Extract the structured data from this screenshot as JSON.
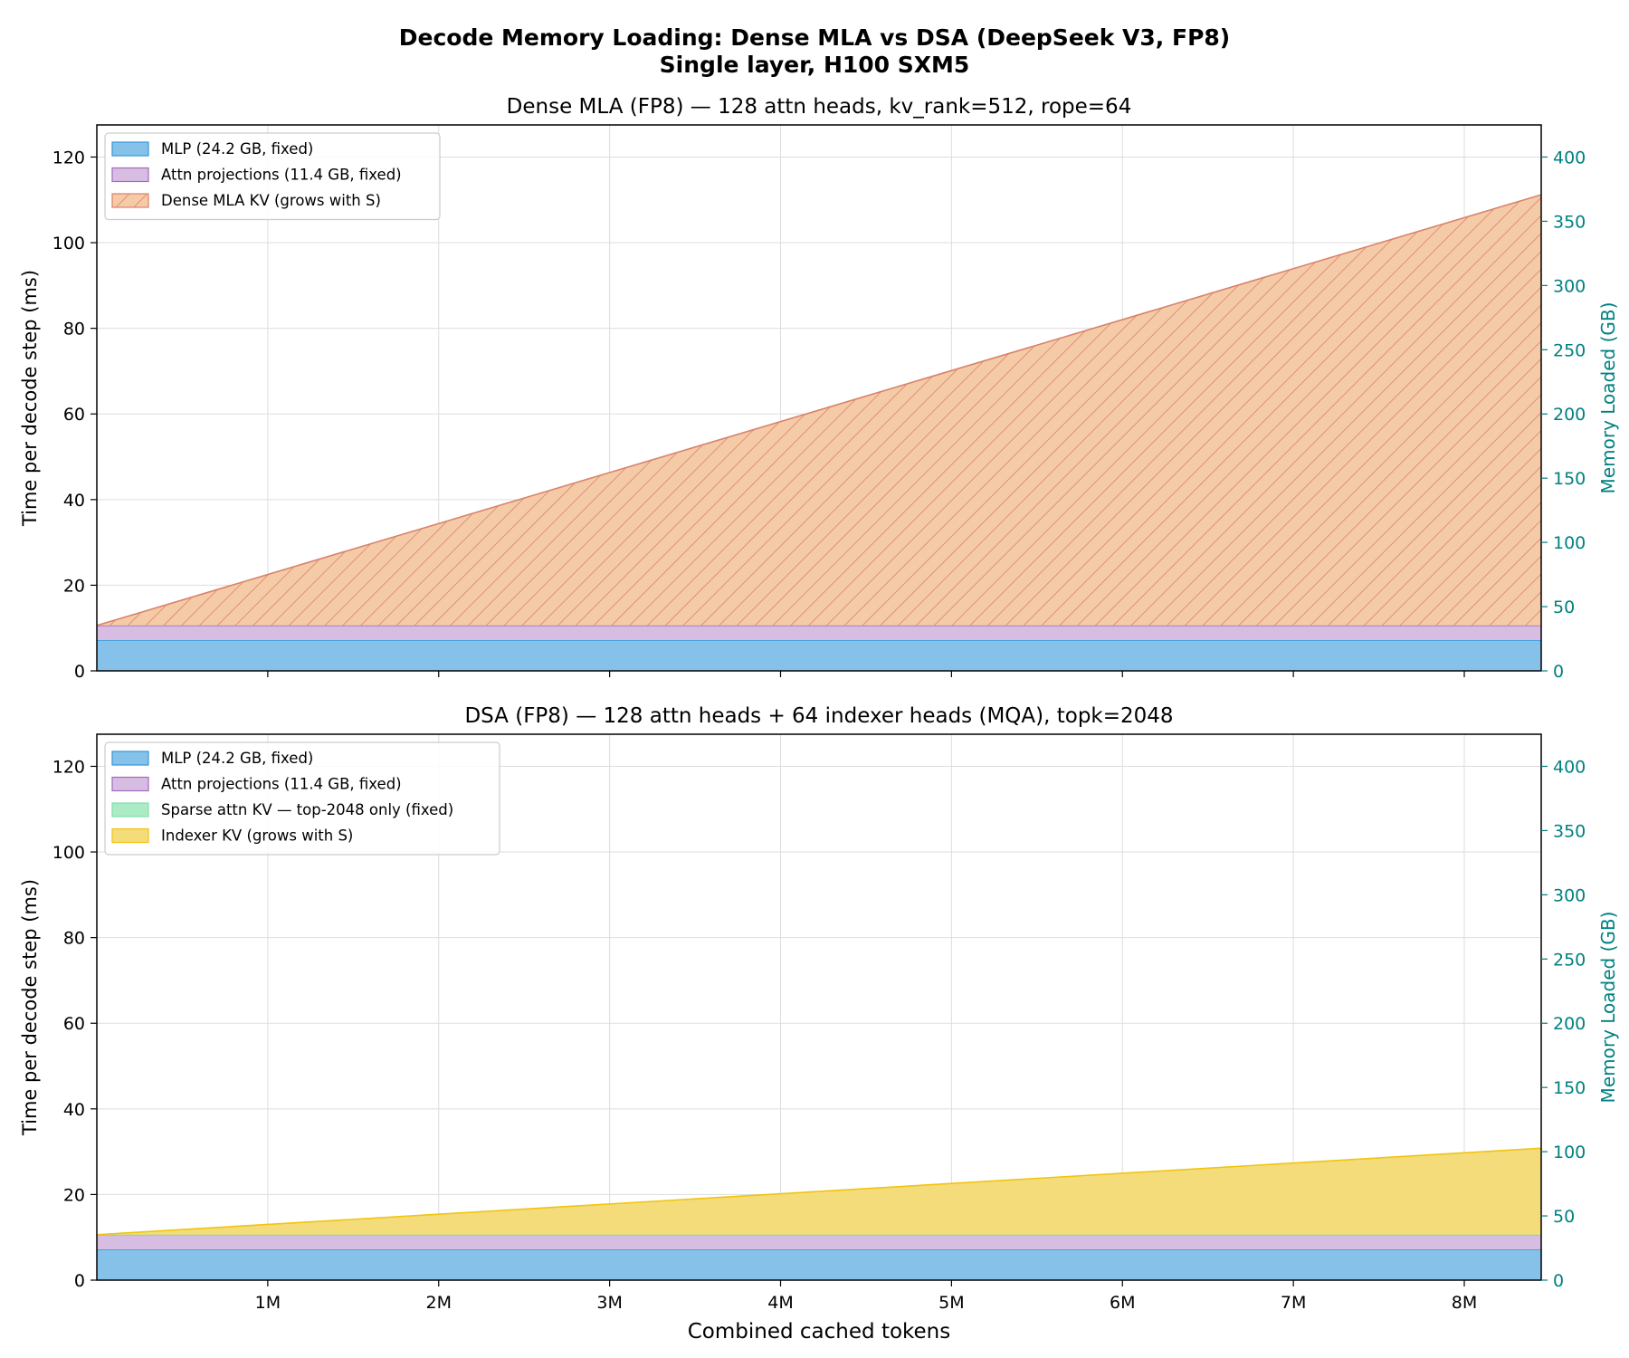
{
  "figure": {
    "title_line1": "Decode Memory Loading: Dense MLA vs DSA (DeepSeek V3, FP8)",
    "title_line2": "Single layer, H100 SXM5",
    "xlabel": "Combined cached tokens"
  },
  "chart_data": [
    {
      "type": "area",
      "stacked": true,
      "title": "Dense MLA (FP8) — 128 attn heads, kv_rank=512, rope=64",
      "ylabel": "Time per decode step (ms)",
      "ylabel_right": "Memory Loaded (GB)",
      "xlim": [
        0,
        8450000
      ],
      "ylim": [
        0,
        127.5
      ],
      "ylim_right": [
        0,
        425
      ],
      "xticks": [
        1000000,
        2000000,
        3000000,
        4000000,
        5000000,
        6000000,
        7000000,
        8000000
      ],
      "xtick_labels": [
        "1M",
        "2M",
        "3M",
        "4M",
        "5M",
        "6M",
        "7M",
        "8M"
      ],
      "yticks": [
        0,
        20,
        40,
        60,
        80,
        100,
        120
      ],
      "yticks_right": [
        0,
        50,
        100,
        150,
        200,
        250,
        300,
        350,
        400
      ],
      "grid": true,
      "legend_position": "upper-left",
      "x": [
        0,
        8450000
      ],
      "series": [
        {
          "name": "MLP (24.2 GB, fixed)",
          "values": [
            7.2,
            7.2
          ],
          "color": "#85c1e9",
          "edge": "#3498db"
        },
        {
          "name": "Attn projections (11.4 GB, fixed)",
          "values": [
            3.4,
            3.4
          ],
          "color": "#d7bde2",
          "edge": "#a569bd"
        },
        {
          "name": "Dense MLA KV (grows with S)",
          "values": [
            0.0,
            100.6
          ],
          "color": "#f5cba7",
          "edge": "#d9826a",
          "hatch": true
        }
      ]
    },
    {
      "type": "area",
      "stacked": true,
      "title": "DSA (FP8) — 128 attn heads + 64 indexer heads (MQA), topk=2048",
      "ylabel": "Time per decode step (ms)",
      "ylabel_right": "Memory Loaded (GB)",
      "xlim": [
        0,
        8450000
      ],
      "ylim": [
        0,
        127.5
      ],
      "ylim_right": [
        0,
        425
      ],
      "xticks": [
        1000000,
        2000000,
        3000000,
        4000000,
        5000000,
        6000000,
        7000000,
        8000000
      ],
      "xtick_labels": [
        "1M",
        "2M",
        "3M",
        "4M",
        "5M",
        "6M",
        "7M",
        "8M"
      ],
      "yticks": [
        0,
        20,
        40,
        60,
        80,
        100,
        120
      ],
      "yticks_right": [
        0,
        50,
        100,
        150,
        200,
        250,
        300,
        350,
        400
      ],
      "grid": true,
      "legend_position": "upper-left",
      "x": [
        0,
        8450000
      ],
      "series": [
        {
          "name": "MLP (24.2 GB, fixed)",
          "values": [
            7.2,
            7.2
          ],
          "color": "#85c1e9",
          "edge": "#3498db"
        },
        {
          "name": "Attn projections (11.4 GB, fixed)",
          "values": [
            3.4,
            3.4
          ],
          "color": "#d7bde2",
          "edge": "#a569bd"
        },
        {
          "name": "Sparse attn KV — top-2048 only (fixed)",
          "values": [
            0.02,
            0.02
          ],
          "color": "#abebc6",
          "edge": "#82e0aa"
        },
        {
          "name": "Indexer KV (grows with S)",
          "values": [
            0.0,
            20.2
          ],
          "color": "#f4dc7a",
          "edge": "#f1c40f"
        }
      ]
    }
  ]
}
